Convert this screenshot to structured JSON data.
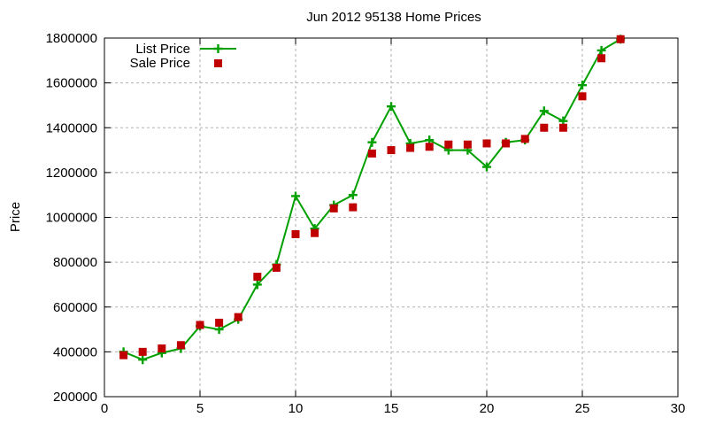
{
  "window": {
    "background": "#ffffff"
  },
  "chart_data": {
    "type": "line",
    "title": "Jun 2012 95138 Home Prices",
    "xlabel": "",
    "ylabel": "Price",
    "xlim": [
      0,
      30
    ],
    "ylim": [
      200000,
      1800000
    ],
    "xticks": [
      0,
      5,
      10,
      15,
      20,
      25,
      30
    ],
    "yticks": [
      200000,
      400000,
      600000,
      800000,
      1000000,
      1200000,
      1400000,
      1600000,
      1800000
    ],
    "grid": true,
    "grid_color": "#b0b0b0",
    "axis_color": "#000000",
    "legend_position": "top-left-inside",
    "x": [
      1,
      2,
      3,
      4,
      5,
      6,
      7,
      8,
      9,
      10,
      11,
      12,
      13,
      14,
      15,
      16,
      17,
      18,
      19,
      20,
      21,
      22,
      23,
      24,
      25,
      26,
      27
    ],
    "series": [
      {
        "name": "List Price",
        "color": "#00a000",
        "marker": "plus",
        "line": true,
        "values": [
          400000,
          365000,
          395000,
          415000,
          515000,
          500000,
          545000,
          700000,
          790000,
          1095000,
          950000,
          1055000,
          1100000,
          1335000,
          1495000,
          1330000,
          1345000,
          1300000,
          1300000,
          1225000,
          1335000,
          1345000,
          1475000,
          1430000,
          1590000,
          1745000,
          1795000
        ]
      },
      {
        "name": "Sale Price",
        "color": "#c00000",
        "marker": "square",
        "line": false,
        "values": [
          385000,
          400000,
          415000,
          430000,
          520000,
          530000,
          555000,
          735000,
          775000,
          925000,
          930000,
          1040000,
          1045000,
          1285000,
          1300000,
          1310000,
          1315000,
          1325000,
          1325000,
          1330000,
          1330000,
          1350000,
          1400000,
          1400000,
          1540000,
          1710000,
          1795000
        ]
      }
    ]
  }
}
